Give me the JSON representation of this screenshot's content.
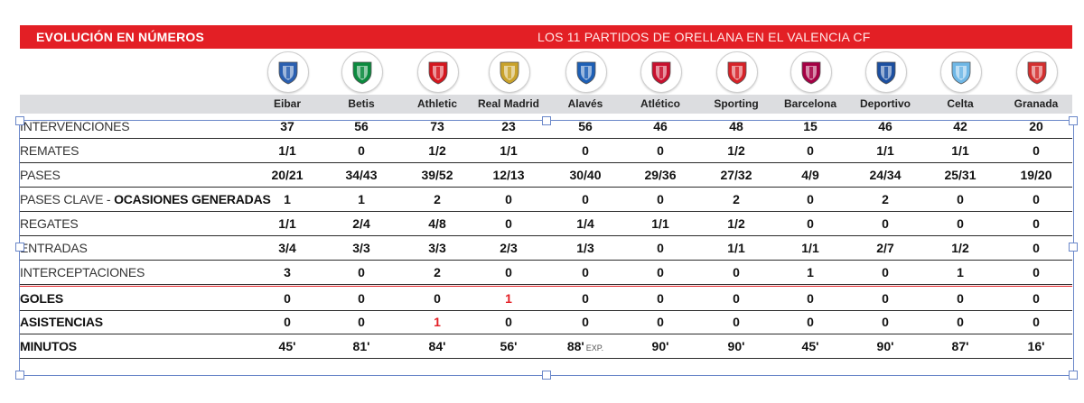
{
  "banner": {
    "left_title": "EVOLUCIÓN EN NÚMEROS",
    "right_title": "LOS 11 PARTIDOS DE ORELLANA EN EL VALENCIA CF"
  },
  "teams": [
    "Eibar",
    "Betis",
    "Athletic",
    "Real Madrid",
    "Alavés",
    "Atlético",
    "Sporting",
    "Barcelona",
    "Deportivo",
    "Celta",
    "Granada"
  ],
  "team_crests": [
    {
      "icon": "eibar-crest-icon",
      "color": "#2a5fb0"
    },
    {
      "icon": "betis-crest-icon",
      "color": "#0b8a3e"
    },
    {
      "icon": "athletic-crest-icon",
      "color": "#d4161e"
    },
    {
      "icon": "real-madrid-crest-icon",
      "color": "#c9a22b"
    },
    {
      "icon": "alaves-crest-icon",
      "color": "#1d5fb5"
    },
    {
      "icon": "atletico-crest-icon",
      "color": "#c8102e"
    },
    {
      "icon": "sporting-crest-icon",
      "color": "#d62228"
    },
    {
      "icon": "barcelona-crest-icon",
      "color": "#a50044"
    },
    {
      "icon": "deportivo-crest-icon",
      "color": "#1c4fa0"
    },
    {
      "icon": "celta-crest-icon",
      "color": "#6fb7e6"
    },
    {
      "icon": "granada-crest-icon",
      "color": "#d32f2f"
    }
  ],
  "rows": [
    {
      "label": "INTERVENCIONES",
      "values": [
        "37",
        "56",
        "73",
        "23",
        "56",
        "46",
        "48",
        "15",
        "46",
        "42",
        "20"
      ]
    },
    {
      "label": "REMATES",
      "values": [
        "1/1",
        "0",
        "1/2",
        "1/1",
        "0",
        "0",
        "1/2",
        "0",
        "1/1",
        "1/1",
        "0"
      ]
    },
    {
      "label": "PASES",
      "values": [
        "20/21",
        "34/43",
        "39/52",
        "12/13",
        "30/40",
        "29/36",
        "27/32",
        "4/9",
        "24/34",
        "25/31",
        "19/20"
      ]
    },
    {
      "label": "PASES CLAVE - ",
      "label_bold": "OCASIONES GENERADAS",
      "values": [
        "1",
        "1",
        "2",
        "0",
        "0",
        "0",
        "2",
        "0",
        "2",
        "0",
        "0"
      ]
    },
    {
      "label": "REGATES",
      "values": [
        "1/1",
        "2/4",
        "4/8",
        "0",
        "1/4",
        "1/1",
        "1/2",
        "0",
        "0",
        "0",
        "0"
      ]
    },
    {
      "label": "ENTRADAS",
      "values": [
        "3/4",
        "3/3",
        "3/3",
        "2/3",
        "1/3",
        "0",
        "1/1",
        "1/1",
        "2/7",
        "1/2",
        "0"
      ]
    },
    {
      "label": "INTERCEPTACIONES",
      "values": [
        "3",
        "0",
        "2",
        "0",
        "0",
        "0",
        "0",
        "1",
        "0",
        "1",
        "0"
      ]
    },
    {
      "label": "GOLES",
      "bold": true,
      "values": [
        "0",
        "0",
        "0",
        "1",
        "0",
        "0",
        "0",
        "0",
        "0",
        "0",
        "0"
      ],
      "red_index": 3
    },
    {
      "label": "ASISTENCIAS",
      "bold": true,
      "values": [
        "0",
        "0",
        "1",
        "0",
        "0",
        "0",
        "0",
        "0",
        "0",
        "0",
        "0"
      ],
      "red_index": 2
    },
    {
      "label": "MINUTOS",
      "bold": true,
      "values": [
        "45'",
        "81'",
        "84'",
        "56'",
        "88'",
        "90'",
        "90'",
        "45'",
        "90'",
        "87'",
        "16'"
      ],
      "note_index": 4,
      "note": "EXP."
    }
  ],
  "colors": {
    "accent": "#e31f25",
    "header_band": "#dcdde0",
    "selection": "#6a87c9"
  }
}
